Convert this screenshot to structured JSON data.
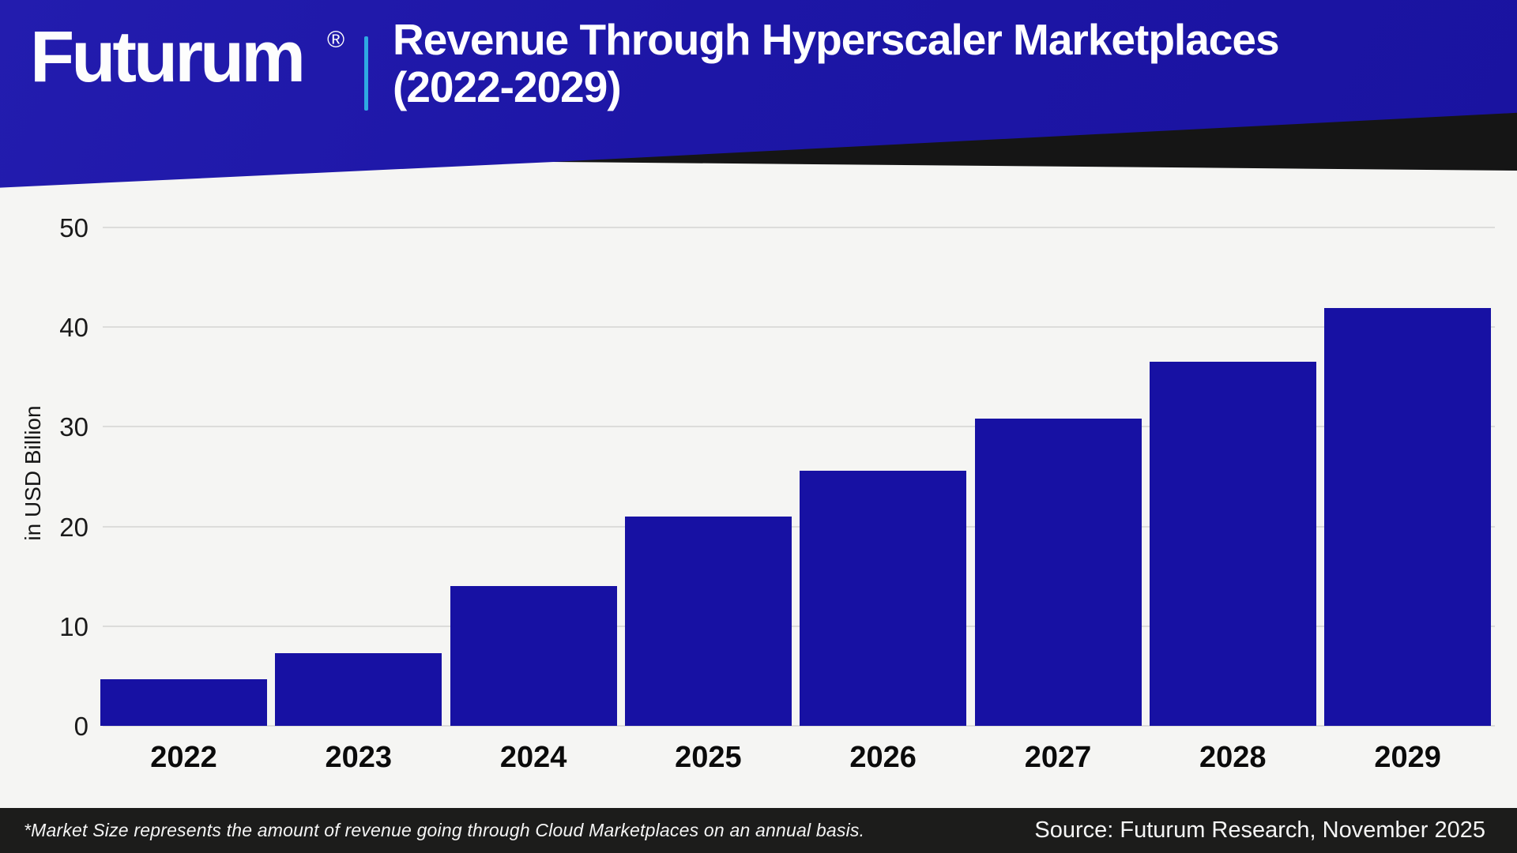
{
  "header": {
    "logo_text": "Futurum",
    "registered_mark": "®",
    "title_line1": "Revenue Through Hyperscaler Marketplaces",
    "title_line2": "(2022-2029)",
    "colors": {
      "banner_blue": "#1d16a6",
      "divider_blue": "#2fa9e3",
      "wedge_black": "#151515"
    }
  },
  "chart_data": {
    "type": "bar",
    "categories": [
      "2022",
      "2023",
      "2024",
      "2025",
      "2026",
      "2027",
      "2028",
      "2029"
    ],
    "values": [
      4.7,
      7.3,
      14,
      21,
      25.6,
      30.8,
      36.5,
      41.9
    ],
    "title": "Revenue Through Hyperscaler Marketplaces (2022-2029)",
    "xlabel": "",
    "ylabel": "in USD Billion",
    "ylim": [
      0,
      50
    ],
    "yticks": [
      0,
      10,
      20,
      30,
      40,
      50
    ],
    "grid": true,
    "legend": "none",
    "bar_color": "#1711a3",
    "gridline_color": "#dcdcda",
    "background": "#f5f5f3",
    "tick_label_color": "#1a1a1a"
  },
  "footer": {
    "note": "*Market Size represents the amount of revenue going through Cloud Marketplaces on an annual basis.",
    "source": "Source: Futurum Research, November 2025",
    "background": "#1c1c1b"
  }
}
